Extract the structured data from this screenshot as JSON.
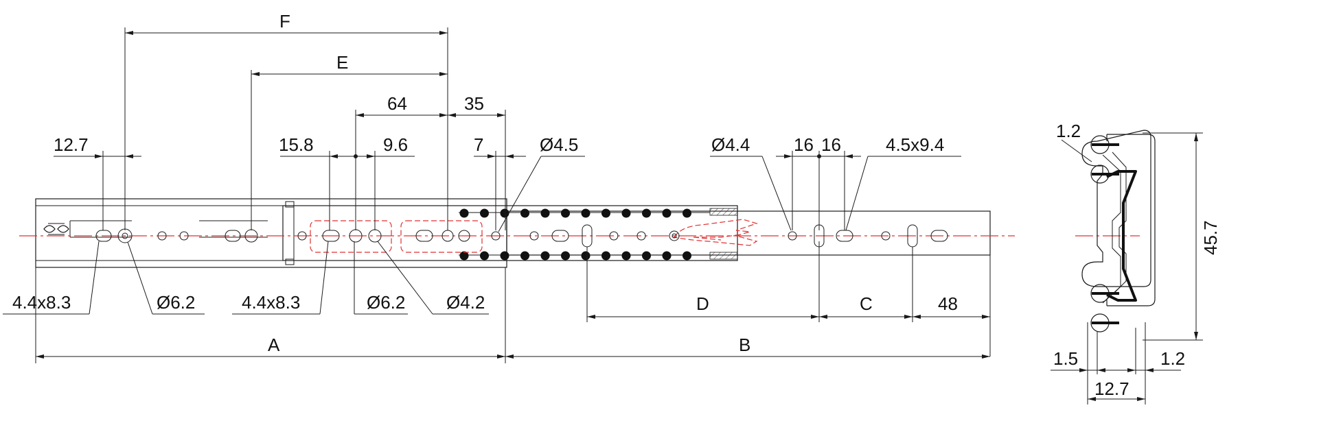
{
  "colors": {
    "line": "#1a1a1a",
    "centerline": "#e03030",
    "hidden": "#e03030",
    "background": "#ffffff"
  },
  "dimensions": {
    "F": "F",
    "E": "E",
    "d64": "64",
    "d35": "35",
    "d12_7_top": "12.7",
    "d15_8": "15.8",
    "d9_6": "9.6",
    "d7": "7",
    "dia4_5": "Ø4.5",
    "dia4_4": "Ø4.4",
    "d16_left": "16",
    "d16_right": "16",
    "slot4_5x9_4": "4.5x9.4",
    "slot4_4x8_3_left": "4.4x8.3",
    "dia6_2_left": "Ø6.2",
    "slot4_4x8_3_mid": "4.4x8.3",
    "dia6_2_mid": "Ø6.2",
    "dia4_2": "Ø4.2",
    "D": "D",
    "C": "C",
    "d48": "48",
    "A": "A",
    "B": "B"
  },
  "section": {
    "d1_2_top": "1.2",
    "d45_7": "45.7",
    "d1_5": "1.5",
    "d1_2_bottom": "1.2",
    "d12_7_bottom": "12.7"
  }
}
